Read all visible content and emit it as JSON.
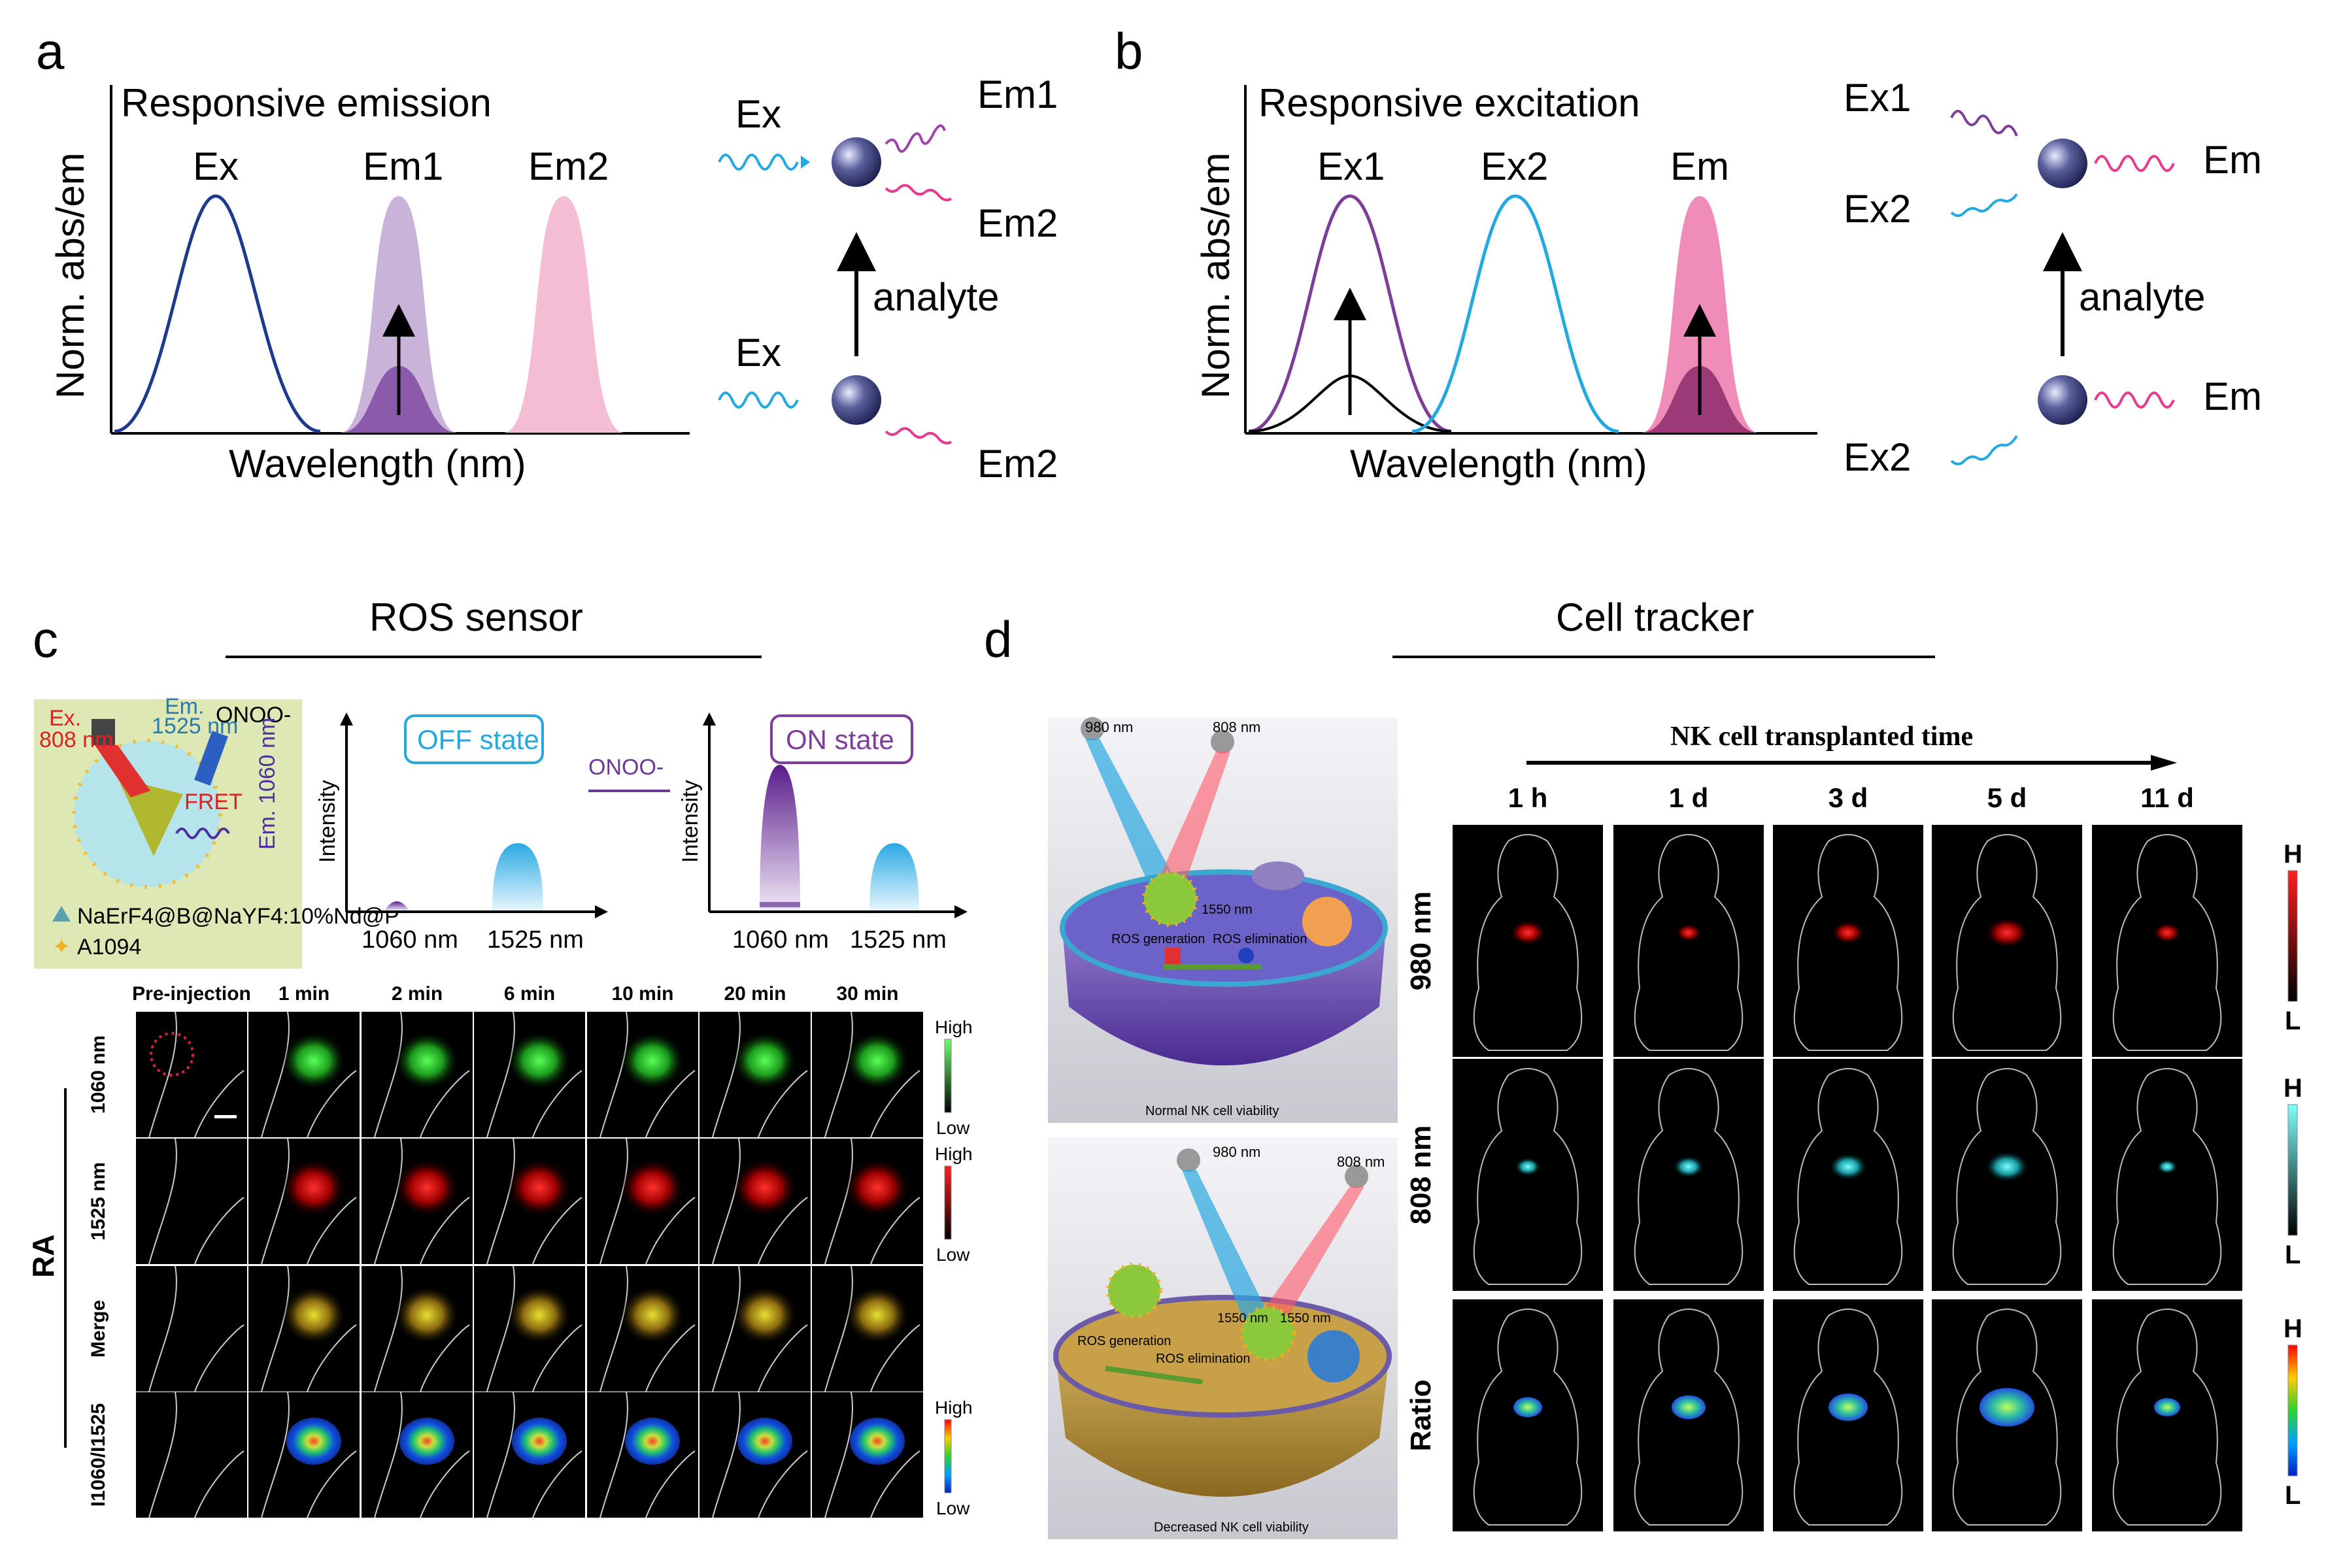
{
  "panels": {
    "a": {
      "letter": "a",
      "title": "Responsive emission",
      "ylabel": "Norm. abs/em",
      "xlabel": "Wavelength (nm)",
      "peaks": [
        "Ex",
        "Em1",
        "Em2"
      ],
      "scheme": {
        "top_in": "Ex",
        "top_out": [
          "Em1",
          "Em2"
        ],
        "arrow": "analyte",
        "bottom_in": "Ex",
        "bottom_out": "Em2"
      }
    },
    "b": {
      "letter": "b",
      "title": "Responsive excitation",
      "ylabel": "Norm. abs/em",
      "xlabel": "Wavelength (nm)",
      "peaks": [
        "Ex1",
        "Ex2",
        "Em"
      ],
      "scheme": {
        "top_in": [
          "Ex1",
          "Ex2"
        ],
        "top_out": "Em",
        "arrow": "analyte",
        "bottom_in": "Ex2",
        "bottom_out": "Em"
      }
    },
    "c": {
      "letter": "c",
      "header": "ROS sensor",
      "schematic": {
        "ex_label": "Ex.\n808 nm",
        "em1_label": "Em.\n1525 nm",
        "em2_label": "Em.\n1060 nm",
        "onoo_label": "ONOO-",
        "fret": "FRET",
        "legend1": "NaErF4@B@NaYF4:10%Nd@P",
        "legend2": "A1094"
      },
      "off_plot": {
        "badge": "OFF state",
        "ylabel": "Intensity",
        "ticks": [
          "1060 nm",
          "1525 nm"
        ]
      },
      "on_plot": {
        "badge": "ON state",
        "ylabel": "Intensity",
        "ticks": [
          "1060 nm",
          "1525 nm"
        ]
      },
      "arrow_label": "ONOO-",
      "columns": [
        "Pre-injection",
        "1 min",
        "2 min",
        "6 min",
        "10 min",
        "20 min",
        "30 min"
      ],
      "rows": [
        "1060 nm",
        "1525 nm",
        "Merge",
        "I1060/I1525"
      ],
      "group_label": "RA",
      "scale": {
        "high": "High",
        "low": "Low"
      }
    },
    "d": {
      "letter": "d",
      "header": "Cell tracker",
      "illus_top": {
        "l980": "980 nm",
        "l808": "808 nm",
        "l1550": "1550 nm",
        "ros_gen": "ROS generation",
        "ros_elim": "ROS elimination",
        "caption": "Normal NK cell viability"
      },
      "illus_bottom": {
        "l980": "980 nm",
        "l808": "808 nm",
        "l1550a": "1550 nm",
        "l1550b": "1550 nm",
        "ros_gen": "ROS generation",
        "ros_elim": "ROS elimination",
        "caption": "Decreased NK cell viability"
      },
      "timeline": "NK cell transplanted time",
      "columns": [
        "1 h",
        "1 d",
        "3 d",
        "5 d",
        "11 d"
      ],
      "rows": [
        "980 nm",
        "808 nm",
        "Ratio"
      ],
      "scale": {
        "high": "H",
        "low": "L"
      }
    }
  },
  "colors": {
    "navy": "#1f3a8c",
    "cyan": "#23a8e0",
    "purple": "#7d3e98",
    "pink": "#e83b8e",
    "lavender": "#c9b3d9",
    "lightpink": "#f5bdd4",
    "mouse_bg": "#000000"
  }
}
